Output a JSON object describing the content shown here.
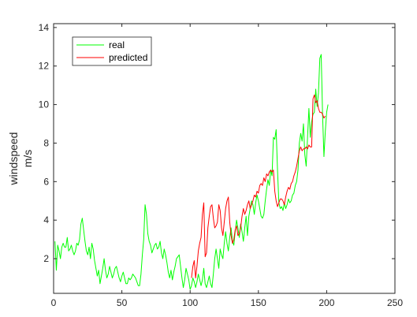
{
  "chart_data": {
    "type": "line",
    "title": "",
    "xlabel": "",
    "ylabel_line1": "windspeed",
    "ylabel_line2": "m/s",
    "xlim": [
      0,
      250
    ],
    "ylim": [
      0.2,
      14.2
    ],
    "x_ticks": [
      0,
      50,
      100,
      150,
      200,
      250
    ],
    "y_ticks": [
      2,
      4,
      6,
      8,
      10,
      12,
      14
    ],
    "grid": false,
    "legend": "top-left",
    "series": [
      {
        "name": "real",
        "color": "#00ff00",
        "x_start": 1,
        "values": [
          2.9,
          1.4,
          2.7,
          2.4,
          2.0,
          2.6,
          2.8,
          2.6,
          2.6,
          3.1,
          2.4,
          2.5,
          2.7,
          2.4,
          2.2,
          2.4,
          2.8,
          2.7,
          3.0,
          3.8,
          4.1,
          3.5,
          2.9,
          2.4,
          2.2,
          2.6,
          2.0,
          2.8,
          2.5,
          1.9,
          1.5,
          1.1,
          1.4,
          0.7,
          1.1,
          1.5,
          2.0,
          1.4,
          1.0,
          1.2,
          1.6,
          1.3,
          1.0,
          1.2,
          1.5,
          1.6,
          1.3,
          1.0,
          0.8,
          1.1,
          1.3,
          1.0,
          0.7,
          0.7,
          1.0,
          0.9,
          1.0,
          1.2,
          1.1,
          1.0,
          0.8,
          0.6,
          0.6,
          1.2,
          2.2,
          3.0,
          4.8,
          4.3,
          3.3,
          2.9,
          2.7,
          2.3,
          2.5,
          2.7,
          2.8,
          2.5,
          2.6,
          2.9,
          2.3,
          2.0,
          2.5,
          2.2,
          1.8,
          1.3,
          1.0,
          1.4,
          0.9,
          1.3,
          1.6,
          2.0,
          2.1,
          2.2,
          1.6,
          1.0,
          0.5,
          0.9,
          1.5,
          1.2,
          0.9,
          0.4,
          0.6,
          1.0,
          0.8,
          0.5,
          0.8,
          1.2,
          0.9,
          0.6,
          0.9,
          1.5,
          0.7,
          0.5,
          0.8,
          1.1,
          0.7,
          0.5,
          1.2,
          2.0,
          2.5,
          2.0,
          1.5,
          2.5,
          2.2,
          2.0,
          2.8,
          3.4,
          2.8,
          2.4,
          3.1,
          3.6,
          2.9,
          2.7,
          3.4,
          4.0,
          3.6,
          3.1,
          3.8,
          3.4,
          2.9,
          3.6,
          4.2,
          3.2,
          4.2,
          4.6,
          5.0,
          4.8,
          4.3,
          4.9,
          5.3,
          5.0,
          4.6,
          4.2,
          4.1,
          4.3,
          5.0,
          5.6,
          6.1,
          5.8,
          6.6,
          6.3,
          8.3,
          8.2,
          8.7,
          6.6,
          4.9,
          4.6,
          4.7,
          4.5,
          4.9,
          4.6,
          4.8,
          5.1,
          4.9,
          5.0,
          5.3,
          5.4,
          5.8,
          6.0,
          6.6,
          8.0,
          8.5,
          8.1,
          9.0,
          7.4,
          6.8,
          8.3,
          9.8,
          8.3,
          9.1,
          9.5,
          9.6,
          10.8,
          9.9,
          10.6,
          12.4,
          12.6,
          9.5,
          7.3,
          8.6,
          9.6,
          10.0
        ]
      },
      {
        "name": "predicted",
        "color": "#ff0000",
        "x_start": 101,
        "values": [
          1.0,
          1.6,
          1.9,
          1.0,
          1.6,
          2.4,
          2.8,
          3.1,
          4.3,
          4.9,
          2.1,
          2.3,
          3.6,
          4.2,
          4.7,
          4.8,
          4.1,
          3.6,
          3.7,
          3.9,
          4.8,
          4.5,
          3.6,
          3.2,
          3.9,
          4.6,
          5.0,
          5.2,
          3.9,
          3.2,
          2.8,
          3.0,
          3.5,
          3.7,
          3.2,
          3.3,
          3.6,
          4.2,
          4.6,
          4.3,
          4.5,
          4.8,
          5.0,
          4.6,
          4.8,
          5.0,
          5.3,
          5.2,
          5.5,
          5.4,
          5.8,
          5.9,
          5.8,
          6.2,
          6.0,
          6.4,
          6.3,
          6.5,
          6.6,
          6.5,
          6.6,
          5.5,
          5.0,
          4.7,
          4.9,
          5.1,
          5.1,
          5.0,
          4.8,
          5.2,
          5.5,
          5.7,
          5.6,
          5.9,
          6.0,
          6.3,
          6.5,
          6.8,
          7.2,
          7.6,
          7.8,
          7.6,
          7.7,
          7.7,
          7.8,
          7.7,
          7.9,
          7.8,
          7.8,
          10.3,
          10.5,
          10.1,
          10.2,
          9.8,
          9.6,
          9.6,
          9.5,
          9.3,
          9.4
        ]
      }
    ]
  }
}
